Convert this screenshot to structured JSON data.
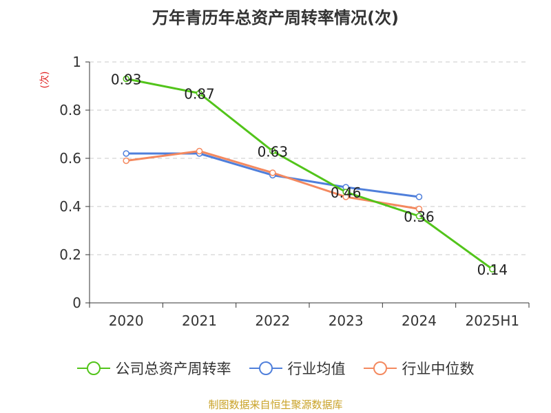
{
  "chart_data": {
    "type": "line",
    "title": "万年青历年总资产周转率情况(次)",
    "ylabel": "(次)",
    "xlabel": "",
    "categories": [
      "2020",
      "2021",
      "2022",
      "2023",
      "2024",
      "2025H1"
    ],
    "ylim": [
      0,
      1
    ],
    "yticks": [
      "0",
      "0.2",
      "0.4",
      "0.6",
      "0.8",
      "1"
    ],
    "grid": true,
    "legend_position": "bottom",
    "series": [
      {
        "name": "公司总资产周转率",
        "color": "#52c41a",
        "values": [
          0.93,
          0.87,
          0.63,
          0.46,
          0.36,
          0.14
        ],
        "labels": [
          "0.93",
          "0.87",
          "0.63",
          "0.46",
          "0.36",
          "0.14"
        ]
      },
      {
        "name": "行业均值",
        "color": "#4f7fdb",
        "values": [
          0.62,
          0.62,
          0.53,
          0.48,
          0.44,
          null
        ]
      },
      {
        "name": "行业中位数",
        "color": "#f4895f",
        "values": [
          0.59,
          0.63,
          0.54,
          0.44,
          0.39,
          null
        ]
      }
    ]
  },
  "source": "制图数据来自恒生聚源数据库"
}
